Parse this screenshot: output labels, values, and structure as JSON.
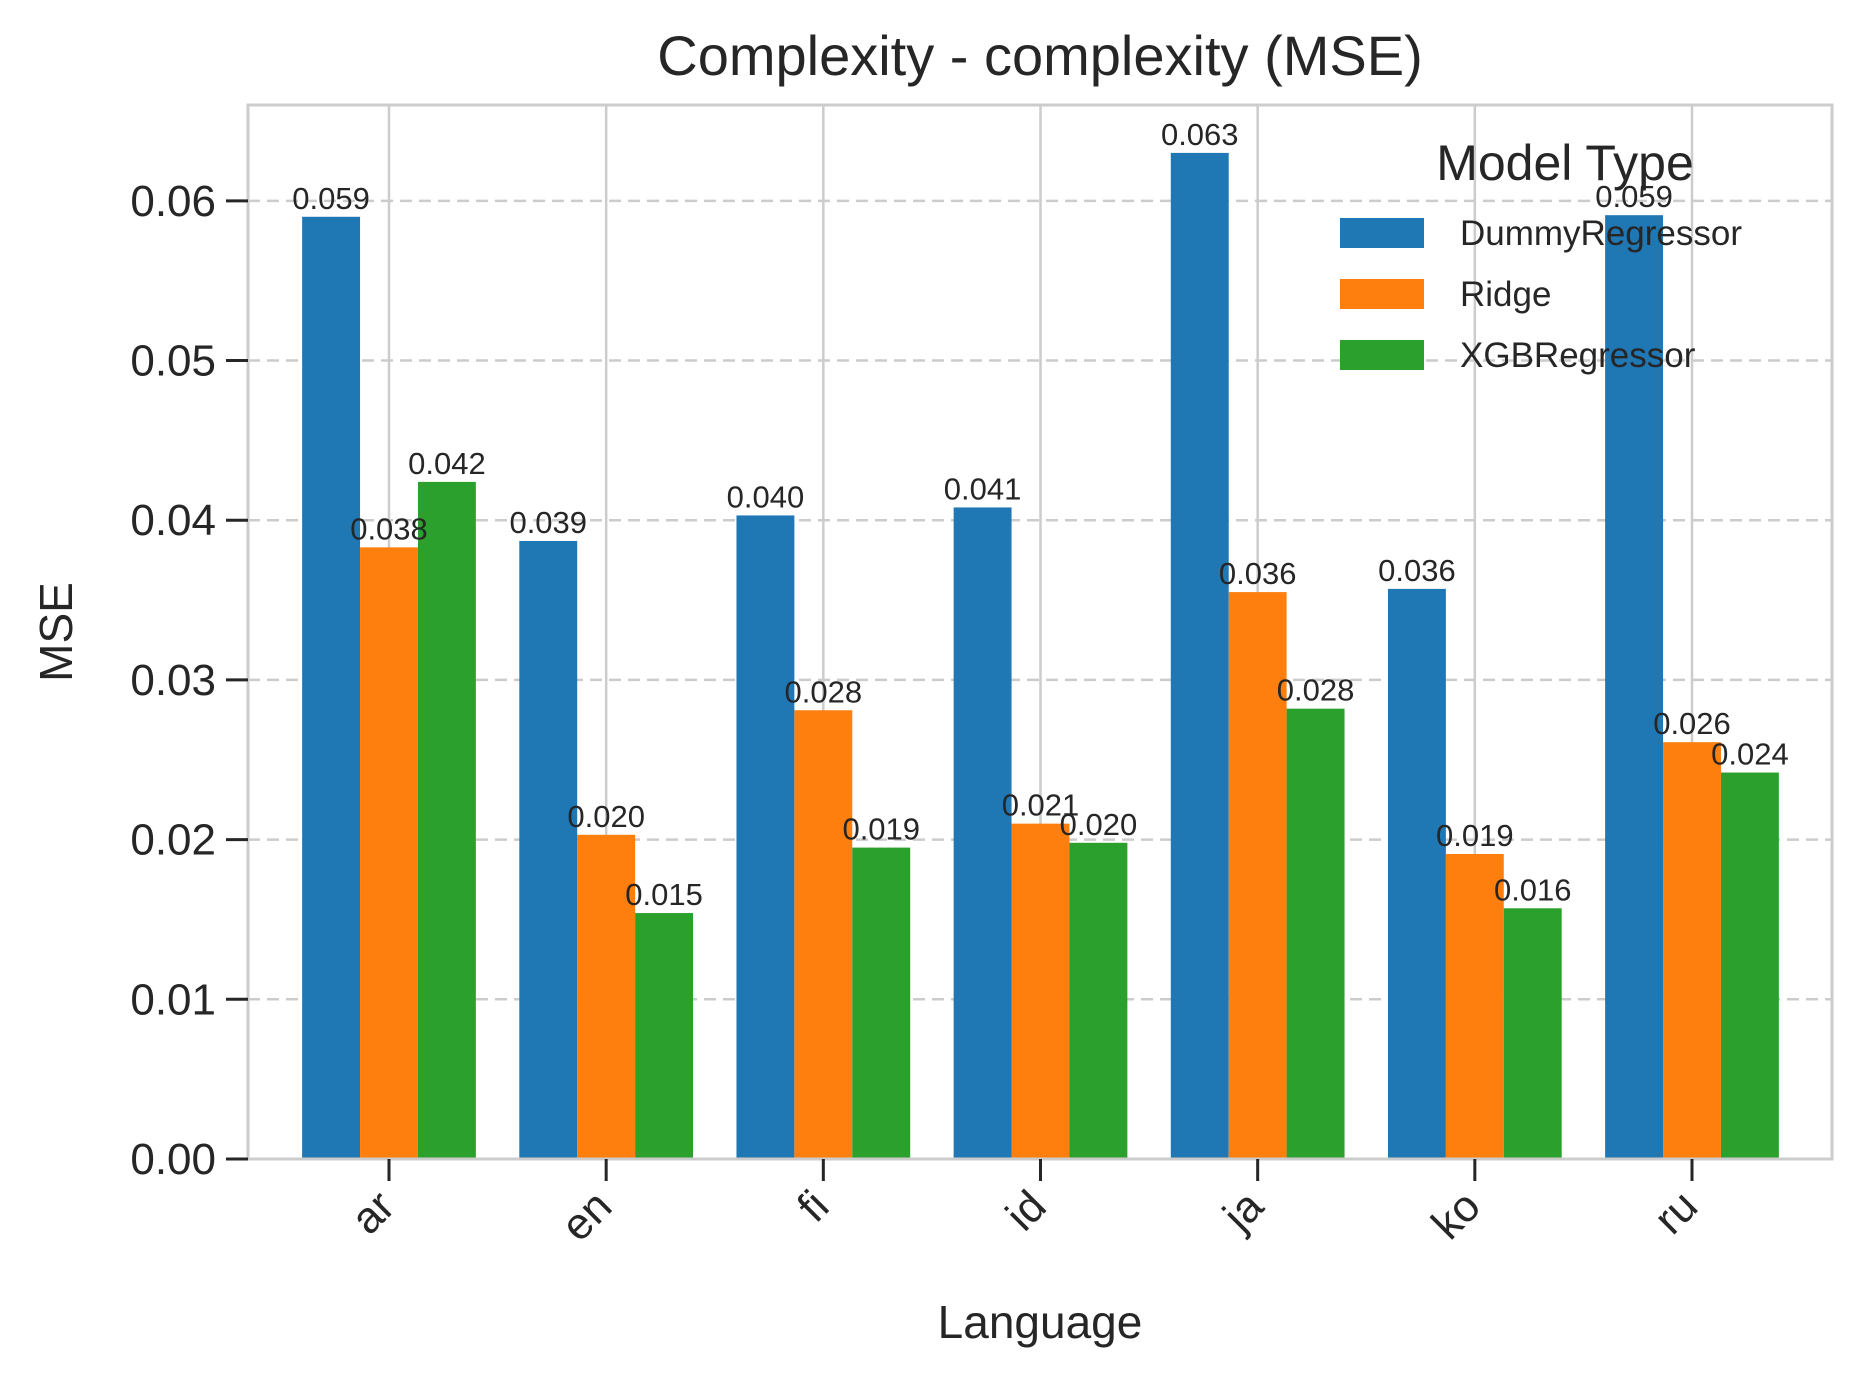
{
  "chart_data": {
    "type": "bar",
    "title": "Complexity - complexity (MSE)",
    "xlabel": "Language",
    "ylabel": "MSE",
    "categories": [
      "ar",
      "en",
      "fi",
      "id",
      "ja",
      "ko",
      "ru"
    ],
    "ylim": [
      0,
      0.066
    ],
    "yticks": [
      0.0,
      0.01,
      0.02,
      0.03,
      0.04,
      0.05,
      0.06
    ],
    "ytick_labels": [
      "0.00",
      "0.01",
      "0.02",
      "0.03",
      "0.04",
      "0.05",
      "0.06"
    ],
    "grid": {
      "x": "solid",
      "y": "dashed"
    },
    "legend": {
      "title": "Model Type",
      "placement": "top-right"
    },
    "series": [
      {
        "name": "DummyRegressor",
        "color": "#1f77b4",
        "values": [
          0.059,
          0.0387,
          0.0403,
          0.0408,
          0.063,
          0.0357,
          0.0591
        ],
        "labels": [
          "0.059",
          "0.039",
          "0.040",
          "0.041",
          "0.063",
          "0.036",
          "0.059"
        ]
      },
      {
        "name": "Ridge",
        "color": "#ff7f0e",
        "values": [
          0.0383,
          0.0203,
          0.0281,
          0.021,
          0.0355,
          0.0191,
          0.0261
        ],
        "labels": [
          "0.038",
          "0.020",
          "0.028",
          "0.021",
          "0.036",
          "0.019",
          "0.026"
        ]
      },
      {
        "name": "XGBRegressor",
        "color": "#2ca02c",
        "values": [
          0.0424,
          0.0154,
          0.0195,
          0.0198,
          0.0282,
          0.0157,
          0.0242
        ],
        "labels": [
          "0.042",
          "0.015",
          "0.019",
          "0.020",
          "0.028",
          "0.016",
          "0.024"
        ]
      }
    ]
  }
}
